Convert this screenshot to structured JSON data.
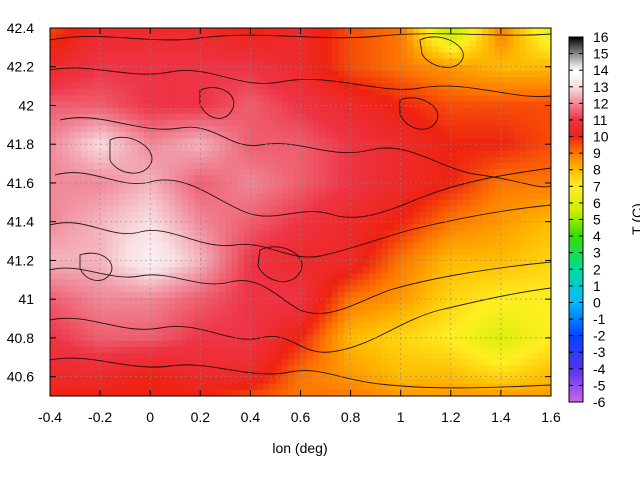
{
  "chart_data": {
    "type": "heatmap",
    "title": "",
    "xlabel": "lon (deg)",
    "ylabel": "",
    "colorbar_label": "T (C)",
    "xlim": [
      -0.4,
      1.6
    ],
    "ylim": [
      40.5,
      42.4
    ],
    "x_ticks": [
      -0.4,
      -0.2,
      0,
      0.2,
      0.4,
      0.6,
      0.8,
      1,
      1.2,
      1.4,
      1.6
    ],
    "x_tick_labels": [
      "-0.4",
      "-0.2",
      "0",
      "0.2",
      "0.4",
      "0.6",
      "0.8",
      "1",
      "1.2",
      "1.4",
      "1.6"
    ],
    "y_ticks": [
      40.6,
      40.8,
      41,
      41.2,
      41.4,
      41.6,
      41.8,
      42,
      42.2,
      42.4
    ],
    "y_tick_labels": [
      "40.6",
      "40.8",
      "41",
      "41.2",
      "41.4",
      "41.6",
      "41.8",
      "42",
      "42.2",
      "42.4"
    ],
    "colorbar_range": [
      -6,
      16
    ],
    "colorbar_ticks": [
      -6,
      -5,
      -4,
      -3,
      -2,
      -1,
      0,
      1,
      2,
      3,
      4,
      5,
      6,
      7,
      8,
      9,
      10,
      11,
      12,
      13,
      14,
      15,
      16
    ],
    "colorbar_tick_labels": [
      "-6",
      "-5",
      "-4",
      "-3",
      "-2",
      "-1",
      "0",
      "1",
      "2",
      "3",
      "4",
      "5",
      "6",
      "7",
      "8",
      "9",
      "10",
      "11",
      "12",
      "13",
      "14",
      "15",
      "16"
    ],
    "grid": true,
    "colormap": [
      {
        "value": -6,
        "color": "#cc66ee"
      },
      {
        "value": -4,
        "color": "#5533ee"
      },
      {
        "value": -2,
        "color": "#0044ff"
      },
      {
        "value": 0,
        "color": "#00bbff"
      },
      {
        "value": 2,
        "color": "#00dd99"
      },
      {
        "value": 4,
        "color": "#33dd00"
      },
      {
        "value": 5.5,
        "color": "#ccee00"
      },
      {
        "value": 7,
        "color": "#ffee22"
      },
      {
        "value": 8,
        "color": "#ffbb00"
      },
      {
        "value": 9,
        "color": "#ff7700"
      },
      {
        "value": 10,
        "color": "#ee2211"
      },
      {
        "value": 11,
        "color": "#ee3344"
      },
      {
        "value": 12,
        "color": "#f08898"
      },
      {
        "value": 13,
        "color": "#f8e0e4"
      },
      {
        "value": 14,
        "color": "#ffffff"
      },
      {
        "value": 15,
        "color": "#888888"
      },
      {
        "value": 16,
        "color": "#000000"
      }
    ],
    "temperature_field": {
      "lon": [
        -0.4,
        -0.2,
        0,
        0.2,
        0.4,
        0.6,
        0.8,
        1.0,
        1.2,
        1.4,
        1.6
      ],
      "lat": [
        42.4,
        42.2,
        42.0,
        41.8,
        41.6,
        41.4,
        41.2,
        41.0,
        40.8,
        40.6,
        40.5
      ],
      "values": [
        [
          9.5,
          10.5,
          10.5,
          10.5,
          10.0,
          10.5,
          9.5,
          9.0,
          5.0,
          9.0,
          6.0
        ],
        [
          10.5,
          11.0,
          11.0,
          11.0,
          11.0,
          10.5,
          9.5,
          9.0,
          8.5,
          8.0,
          8.0
        ],
        [
          11.5,
          11.5,
          11.0,
          11.0,
          11.5,
          11.0,
          10.5,
          10.0,
          9.5,
          9.5,
          9.5
        ],
        [
          12.0,
          13.0,
          12.0,
          12.5,
          11.5,
          11.5,
          11.0,
          10.5,
          10.0,
          10.0,
          9.5
        ],
        [
          12.0,
          12.0,
          12.5,
          11.5,
          12.0,
          11.5,
          11.0,
          10.5,
          10.0,
          9.0,
          9.0
        ],
        [
          12.0,
          12.5,
          13.0,
          12.0,
          11.5,
          11.0,
          10.5,
          10.0,
          9.0,
          8.5,
          8.0
        ],
        [
          12.5,
          12.5,
          13.5,
          12.5,
          11.0,
          10.5,
          10.5,
          9.0,
          8.0,
          8.0,
          7.5
        ],
        [
          11.5,
          12.0,
          12.0,
          11.5,
          11.0,
          11.0,
          9.0,
          8.5,
          7.5,
          7.0,
          7.0
        ],
        [
          11.0,
          11.5,
          11.5,
          11.0,
          11.0,
          10.0,
          8.0,
          7.5,
          7.0,
          6.0,
          7.0
        ],
        [
          10.5,
          10.5,
          10.0,
          10.5,
          10.5,
          9.0,
          8.5,
          8.0,
          8.0,
          7.5,
          8.0
        ],
        [
          10.0,
          10.0,
          10.0,
          10.0,
          9.5,
          9.0,
          9.0,
          8.5,
          8.5,
          8.5,
          8.5
        ]
      ]
    }
  }
}
